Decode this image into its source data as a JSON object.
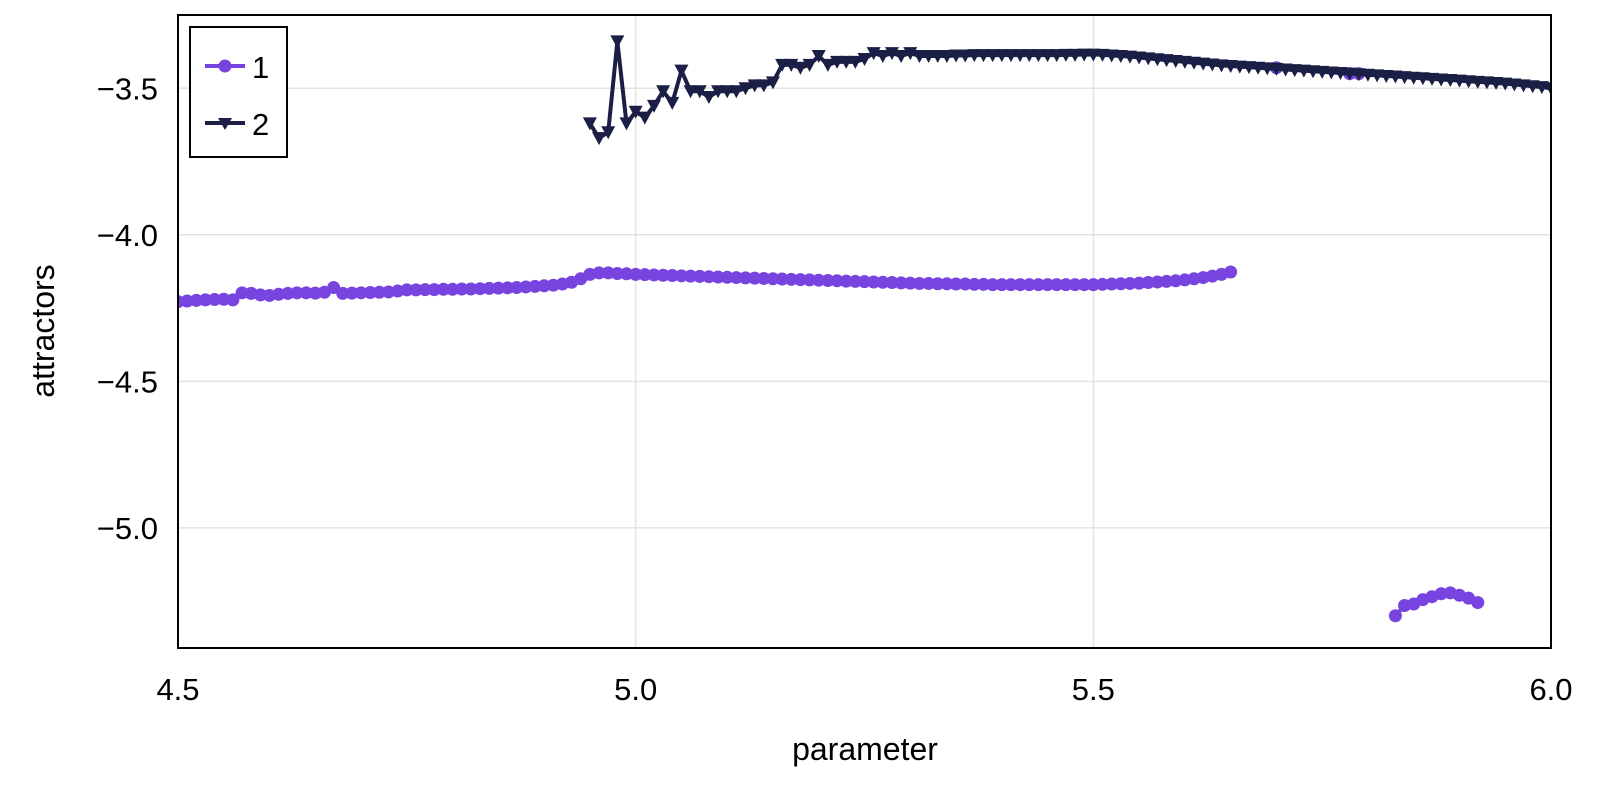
{
  "chart_data": {
    "type": "line",
    "title": "",
    "xlabel": "parameter",
    "ylabel": "attractors",
    "xlim": [
      4.5,
      6.0
    ],
    "ylim": [
      -5.41,
      -3.25
    ],
    "xticks": [
      4.5,
      5.0,
      5.5,
      6.0
    ],
    "xtick_labels": [
      "4.5",
      "5.0",
      "5.5",
      "6.0"
    ],
    "yticks": [
      -3.5,
      -4.0,
      -4.5,
      -5.0
    ],
    "ytick_labels": [
      "−3.5",
      "−4.0",
      "−4.5",
      "−5.0"
    ],
    "grid": true,
    "legend": {
      "placement": "top-left",
      "entries": [
        "1",
        "2"
      ]
    },
    "series": [
      {
        "name": "1",
        "color": "#7744e0",
        "marker": "circle",
        "segments": [
          {
            "x_start": 4.5,
            "x_step": 0.01,
            "y": [
              -4.228,
              -4.226,
              -4.224,
              -4.222,
              -4.221,
              -4.22,
              -4.222,
              -4.198,
              -4.2,
              -4.205,
              -4.207,
              -4.203,
              -4.2,
              -4.198,
              -4.198,
              -4.199,
              -4.196,
              -4.18,
              -4.2,
              -4.199,
              -4.198,
              -4.197,
              -4.196,
              -4.195,
              -4.192,
              -4.188,
              -4.188,
              -4.187,
              -4.187,
              -4.186,
              -4.186,
              -4.185,
              -4.185,
              -4.184,
              -4.183,
              -4.182,
              -4.181,
              -4.18,
              -4.178,
              -4.176,
              -4.174,
              -4.172,
              -4.168,
              -4.162,
              -4.15,
              -4.135,
              -4.13,
              -4.13,
              -4.132,
              -4.133,
              -4.135,
              -4.136,
              -4.137,
              -4.138,
              -4.139,
              -4.14,
              -4.141,
              -4.142,
              -4.143,
              -4.144,
              -4.145,
              -4.146,
              -4.147,
              -4.148,
              -4.149,
              -4.15,
              -4.151,
              -4.152,
              -4.153,
              -4.154,
              -4.155,
              -4.156,
              -4.157,
              -4.158,
              -4.159,
              -4.16,
              -4.161,
              -4.162,
              -4.163,
              -4.164,
              -4.165,
              -4.166,
              -4.166,
              -4.167,
              -4.167,
              -4.168,
              -4.168,
              -4.169,
              -4.169,
              -4.17,
              -4.17,
              -4.17,
              -4.17,
              -4.17,
              -4.17,
              -4.17,
              -4.17,
              -4.17,
              -4.17,
              -4.17,
              -4.17,
              -4.169,
              -4.168,
              -4.167,
              -4.166,
              -4.165,
              -4.163,
              -4.161,
              -4.159,
              -4.157,
              -4.154,
              -4.15,
              -4.146,
              -4.141,
              -4.135,
              -4.127
            ]
          },
          {
            "x_start": 5.7,
            "x_step": 0.01,
            "y": [
              -3.43
            ]
          },
          {
            "x_start": 5.78,
            "x_step": 0.01,
            "y": [
              -3.45,
              -3.45
            ]
          },
          {
            "x_start": 5.83,
            "x_step": 0.01,
            "y": [
              -5.3,
              -5.265,
              -5.26,
              -5.245,
              -5.235,
              -5.225,
              -5.222,
              -5.23,
              -5.24,
              -5.255
            ]
          }
        ]
      },
      {
        "name": "2",
        "color": "#1b1f45",
        "marker": "triangle-down",
        "segments": [
          {
            "x_start": 4.95,
            "x_step": 0.01,
            "y": [
              -3.62,
              -3.67,
              -3.65,
              -3.34,
              -3.62,
              -3.58,
              -3.6,
              -3.56,
              -3.51,
              -3.55,
              -3.44,
              -3.51,
              -3.51,
              -3.53,
              -3.51,
              -3.51,
              -3.51,
              -3.5,
              -3.49,
              -3.49,
              -3.48,
              -3.42,
              -3.42,
              -3.43,
              -3.42,
              -3.39,
              -3.42,
              -3.41,
              -3.41,
              -3.41,
              -3.4,
              -3.38,
              -3.39,
              -3.38,
              -3.39,
              -3.38,
              -3.39,
              -3.39,
              -3.39,
              -3.39,
              -3.388,
              -3.388,
              -3.387,
              -3.387,
              -3.387,
              -3.387,
              -3.387,
              -3.387,
              -3.387,
              -3.387,
              -3.387,
              -3.387,
              -3.386,
              -3.386,
              -3.385,
              -3.385,
              -3.386,
              -3.388,
              -3.39,
              -3.392,
              -3.395,
              -3.398,
              -3.401,
              -3.404,
              -3.407,
              -3.41,
              -3.413,
              -3.416,
              -3.419,
              -3.422,
              -3.424,
              -3.426,
              -3.428,
              -3.43,
              -3.432,
              -3.434,
              -3.436,
              -3.438,
              -3.44,
              -3.442,
              -3.444,
              -3.446,
              -3.448,
              -3.45,
              -3.452,
              -3.454,
              -3.456,
              -3.458,
              -3.46,
              -3.462,
              -3.464,
              -3.466,
              -3.468,
              -3.47,
              -3.472,
              -3.474,
              -3.476,
              -3.478,
              -3.48,
              -3.482,
              -3.484,
              -3.487,
              -3.49,
              -3.493,
              -3.496,
              -3.5
            ]
          }
        ]
      }
    ]
  }
}
